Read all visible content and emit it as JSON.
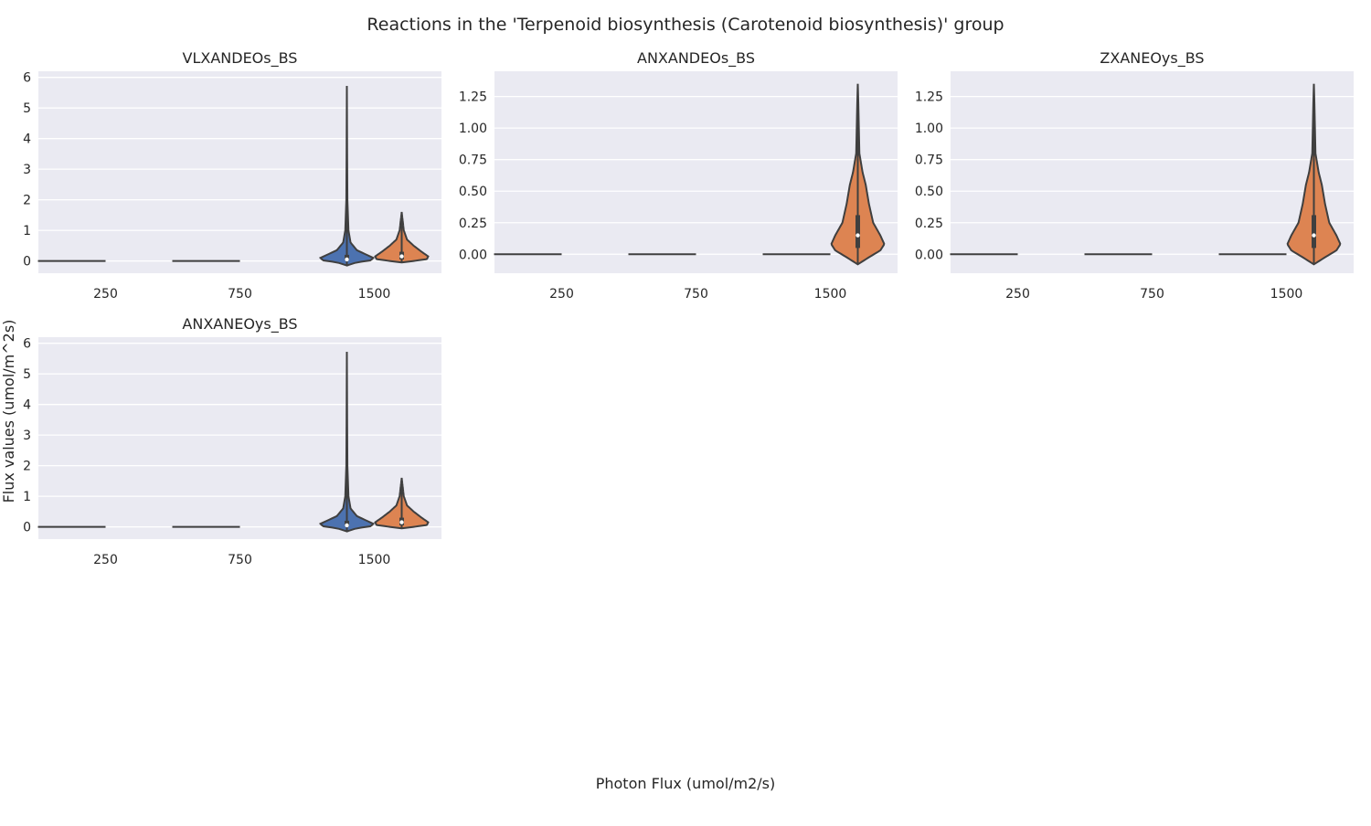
{
  "figure": {
    "title": "Reactions in the 'Terpenoid biosynthesis (Carotenoid biosynthesis)' group",
    "xlabel": "Photon Flux (umol/m2/s)",
    "ylabel": "Flux values (umol/m^2s)"
  },
  "colors": {
    "background": "#eaeaf2",
    "grid": "#ffffff",
    "series_a": "#4c72b0",
    "series_b": "#dd8452",
    "outline": "#3f3f3f"
  },
  "chart_data": [
    {
      "type": "violin",
      "title": "VLXANDEOs_BS",
      "categories": [
        "250",
        "750",
        "1500"
      ],
      "ylim": [
        -0.4,
        6.2
      ],
      "yticks": [
        0,
        1,
        2,
        3,
        4,
        5,
        6
      ],
      "grid": true,
      "series": [
        {
          "color": "series_a",
          "groups": [
            {
              "category": "250",
              "kind": "constant",
              "value": 0
            },
            {
              "category": "750",
              "kind": "constant",
              "value": 0
            },
            {
              "category": "1500",
              "kind": "distribution",
              "min": -0.15,
              "q1": 0.02,
              "median": 0.05,
              "q3": 0.2,
              "max": 5.72,
              "density": [
                [
                  -0.15,
                  0.0
                ],
                [
                  -0.05,
                  0.35
                ],
                [
                  0.02,
                  0.9
                ],
                [
                  0.1,
                  1.0
                ],
                [
                  0.2,
                  0.75
                ],
                [
                  0.35,
                  0.38
                ],
                [
                  0.6,
                  0.14
                ],
                [
                  1.0,
                  0.06
                ],
                [
                  2.0,
                  0.02
                ],
                [
                  3.5,
                  0.01
                ],
                [
                  5.72,
                  0.0
                ]
              ]
            }
          ]
        },
        {
          "color": "series_b",
          "groups": [
            {
              "category": "250",
              "kind": "none"
            },
            {
              "category": "750",
              "kind": "none"
            },
            {
              "category": "1500",
              "kind": "distribution",
              "min": -0.05,
              "q1": 0.05,
              "median": 0.15,
              "q3": 0.3,
              "max": 1.6,
              "density": [
                [
                  -0.05,
                  0.0
                ],
                [
                  0.0,
                  0.45
                ],
                [
                  0.06,
                  0.95
                ],
                [
                  0.15,
                  1.0
                ],
                [
                  0.3,
                  0.75
                ],
                [
                  0.5,
                  0.45
                ],
                [
                  0.7,
                  0.2
                ],
                [
                  1.0,
                  0.08
                ],
                [
                  1.3,
                  0.04
                ],
                [
                  1.6,
                  0.0
                ]
              ]
            }
          ]
        }
      ]
    },
    {
      "type": "violin",
      "title": "ANXANDEOs_BS",
      "categories": [
        "250",
        "750",
        "1500"
      ],
      "ylim": [
        -0.15,
        1.45
      ],
      "yticks": [
        "0.00",
        "0.25",
        "0.50",
        "0.75",
        "1.00",
        "1.25"
      ],
      "grid": true,
      "series": [
        {
          "color": "series_a",
          "groups": [
            {
              "category": "250",
              "kind": "constant",
              "value": 0
            },
            {
              "category": "750",
              "kind": "constant",
              "value": 0
            },
            {
              "category": "1500",
              "kind": "constant",
              "value": 0
            }
          ]
        },
        {
          "color": "series_b",
          "groups": [
            {
              "category": "250",
              "kind": "none"
            },
            {
              "category": "750",
              "kind": "none"
            },
            {
              "category": "1500",
              "kind": "distribution",
              "min": -0.08,
              "q1": 0.05,
              "median": 0.15,
              "q3": 0.31,
              "max": 1.35,
              "density": [
                [
                  -0.08,
                  0.0
                ],
                [
                  -0.02,
                  0.45
                ],
                [
                  0.03,
                  0.85
                ],
                [
                  0.08,
                  1.0
                ],
                [
                  0.15,
                  0.85
                ],
                [
                  0.25,
                  0.58
                ],
                [
                  0.4,
                  0.42
                ],
                [
                  0.55,
                  0.3
                ],
                [
                  0.65,
                  0.18
                ],
                [
                  0.8,
                  0.06
                ],
                [
                  1.0,
                  0.04
                ],
                [
                  1.2,
                  0.02
                ],
                [
                  1.35,
                  0.0
                ]
              ]
            }
          ]
        }
      ]
    },
    {
      "type": "violin",
      "title": "ZXANEOys_BS",
      "categories": [
        "250",
        "750",
        "1500"
      ],
      "ylim": [
        -0.15,
        1.45
      ],
      "yticks": [
        "0.00",
        "0.25",
        "0.50",
        "0.75",
        "1.00",
        "1.25"
      ],
      "grid": true,
      "series": [
        {
          "color": "series_a",
          "groups": [
            {
              "category": "250",
              "kind": "constant",
              "value": 0
            },
            {
              "category": "750",
              "kind": "constant",
              "value": 0
            },
            {
              "category": "1500",
              "kind": "constant",
              "value": 0
            }
          ]
        },
        {
          "color": "series_b",
          "groups": [
            {
              "category": "250",
              "kind": "none"
            },
            {
              "category": "750",
              "kind": "none"
            },
            {
              "category": "1500",
              "kind": "distribution",
              "min": -0.08,
              "q1": 0.05,
              "median": 0.15,
              "q3": 0.31,
              "max": 1.35,
              "density": [
                [
                  -0.08,
                  0.0
                ],
                [
                  -0.02,
                  0.45
                ],
                [
                  0.03,
                  0.85
                ],
                [
                  0.08,
                  1.0
                ],
                [
                  0.15,
                  0.85
                ],
                [
                  0.25,
                  0.58
                ],
                [
                  0.4,
                  0.42
                ],
                [
                  0.55,
                  0.3
                ],
                [
                  0.65,
                  0.18
                ],
                [
                  0.8,
                  0.06
                ],
                [
                  1.0,
                  0.04
                ],
                [
                  1.2,
                  0.02
                ],
                [
                  1.35,
                  0.0
                ]
              ]
            }
          ]
        }
      ]
    },
    {
      "type": "violin",
      "title": "ANXANEOys_BS",
      "categories": [
        "250",
        "750",
        "1500"
      ],
      "ylim": [
        -0.4,
        6.2
      ],
      "yticks": [
        0,
        1,
        2,
        3,
        4,
        5,
        6
      ],
      "grid": true,
      "series": [
        {
          "color": "series_a",
          "groups": [
            {
              "category": "250",
              "kind": "constant",
              "value": 0
            },
            {
              "category": "750",
              "kind": "constant",
              "value": 0
            },
            {
              "category": "1500",
              "kind": "distribution",
              "min": -0.15,
              "q1": 0.02,
              "median": 0.05,
              "q3": 0.2,
              "max": 5.72,
              "density": [
                [
                  -0.15,
                  0.0
                ],
                [
                  -0.05,
                  0.35
                ],
                [
                  0.02,
                  0.9
                ],
                [
                  0.1,
                  1.0
                ],
                [
                  0.2,
                  0.75
                ],
                [
                  0.35,
                  0.38
                ],
                [
                  0.6,
                  0.14
                ],
                [
                  1.0,
                  0.06
                ],
                [
                  2.0,
                  0.02
                ],
                [
                  3.5,
                  0.01
                ],
                [
                  5.72,
                  0.0
                ]
              ]
            }
          ]
        },
        {
          "color": "series_b",
          "groups": [
            {
              "category": "250",
              "kind": "none"
            },
            {
              "category": "750",
              "kind": "none"
            },
            {
              "category": "1500",
              "kind": "distribution",
              "min": -0.05,
              "q1": 0.05,
              "median": 0.15,
              "q3": 0.3,
              "max": 1.6,
              "density": [
                [
                  -0.05,
                  0.0
                ],
                [
                  0.0,
                  0.45
                ],
                [
                  0.06,
                  0.95
                ],
                [
                  0.15,
                  1.0
                ],
                [
                  0.3,
                  0.75
                ],
                [
                  0.5,
                  0.45
                ],
                [
                  0.7,
                  0.2
                ],
                [
                  1.0,
                  0.08
                ],
                [
                  1.3,
                  0.04
                ],
                [
                  1.6,
                  0.0
                ]
              ]
            }
          ]
        }
      ]
    }
  ]
}
